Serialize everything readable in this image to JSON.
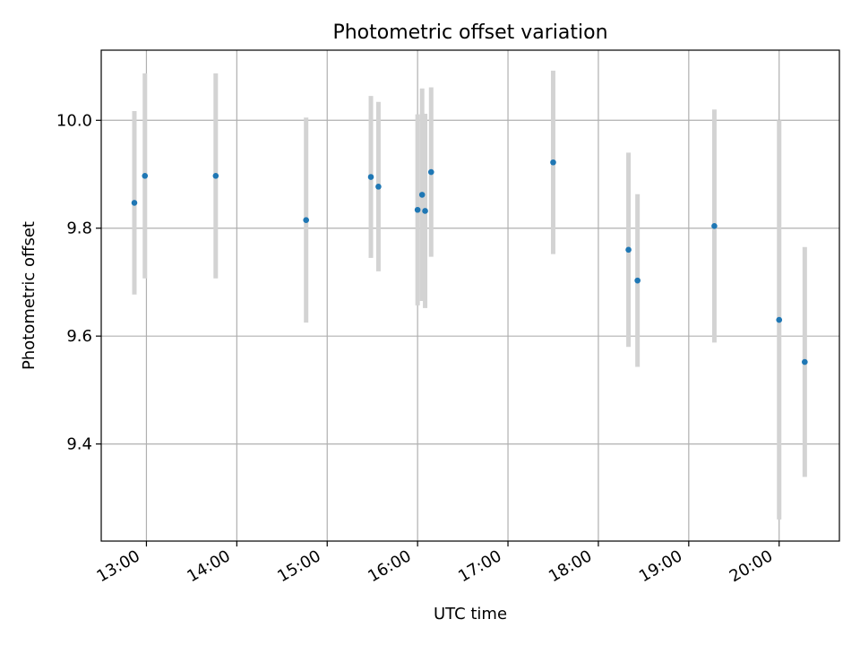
{
  "chart_data": {
    "type": "scatter",
    "title": "Photometric offset variation",
    "xlabel": "UTC time",
    "ylabel": "Photometric offset",
    "x_unit": "hours UTC",
    "xlim": [
      "12:30",
      "20:40"
    ],
    "ylim": [
      9.22,
      10.13
    ],
    "x_tick_labels": [
      "13:00",
      "14:00",
      "15:00",
      "16:00",
      "17:00",
      "18:00",
      "19:00",
      "20:00"
    ],
    "y_ticks": [
      9.4,
      9.6,
      9.8,
      10.0
    ],
    "y_tick_labels": [
      "9.4",
      "9.6",
      "9.8",
      "10.0"
    ],
    "grid": true,
    "legend": "none",
    "colors": {
      "points": "#1f77b4",
      "errorbars": "#d3d3d3",
      "grid": "#b0b0b0"
    },
    "series": [
      {
        "x": [
          "12:52",
          "12:59",
          "13:46",
          "14:46",
          "15:29",
          "15:34",
          "16:00",
          "16:03",
          "16:05",
          "16:09",
          "17:30",
          "18:20",
          "18:26",
          "19:17",
          "20:00",
          "20:17"
        ],
        "y": [
          9.847,
          9.897,
          9.897,
          9.815,
          9.895,
          9.877,
          9.834,
          9.862,
          9.832,
          9.904,
          9.922,
          9.76,
          9.703,
          9.804,
          9.63,
          9.552
        ],
        "yerr": [
          0.17,
          0.19,
          0.19,
          0.19,
          0.15,
          0.157,
          0.177,
          0.197,
          0.18,
          0.157,
          0.17,
          0.18,
          0.16,
          0.216,
          0.37,
          0.213
        ]
      }
    ]
  }
}
